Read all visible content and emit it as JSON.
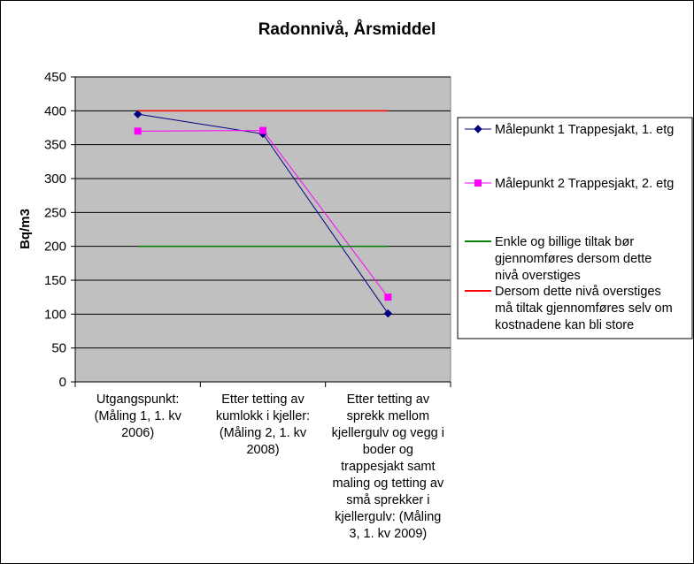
{
  "chart_data": {
    "type": "line",
    "title": "Radonnivå, Årsmiddel",
    "ylabel": "Bq/m3",
    "xlabel": "",
    "ylim": [
      0,
      450
    ],
    "yticks": [
      0,
      50,
      100,
      150,
      200,
      250,
      300,
      350,
      400,
      450
    ],
    "grid": true,
    "legend_position": "right",
    "plot_background": "#c0c0c0",
    "categories": [
      [
        "Utgangspunkt:",
        "(Måling 1, 1. kv",
        "2006)"
      ],
      [
        "Etter tetting av",
        "kumlokk i kjeller:",
        "(Måling 2, 1. kv",
        "2008)"
      ],
      [
        "Etter tetting av",
        "sprekk mellom",
        "kjellergulv og vegg i",
        "boder og",
        "trappesjakt samt",
        "maling og tetting av",
        "små sprekker i",
        "kjellergulv: (Måling",
        "3, 1. kv 2009)"
      ]
    ],
    "series": [
      {
        "name": "Målepunkt 1 Trappesjakt, 1. etg",
        "values": [
          395,
          366,
          101
        ],
        "color": "#000080",
        "marker": "diamond"
      },
      {
        "name": "Målepunkt 2 Trappesjakt, 2. etg",
        "values": [
          370,
          371,
          125
        ],
        "color": "#ff00ff",
        "marker": "square"
      },
      {
        "name_lines": [
          "Enkle og billige tiltak bør",
          "gjennomføres dersom dette",
          "nivå overstiges"
        ],
        "values": [
          200,
          200,
          200
        ],
        "color": "#008000",
        "marker": "none"
      },
      {
        "name_lines": [
          "Dersom dette nivå overstiges",
          "må tiltak gjennomføres selv om",
          "kostnadene kan bli store"
        ],
        "values": [
          400,
          400,
          400
        ],
        "color": "#ff0000",
        "marker": "none"
      }
    ]
  }
}
